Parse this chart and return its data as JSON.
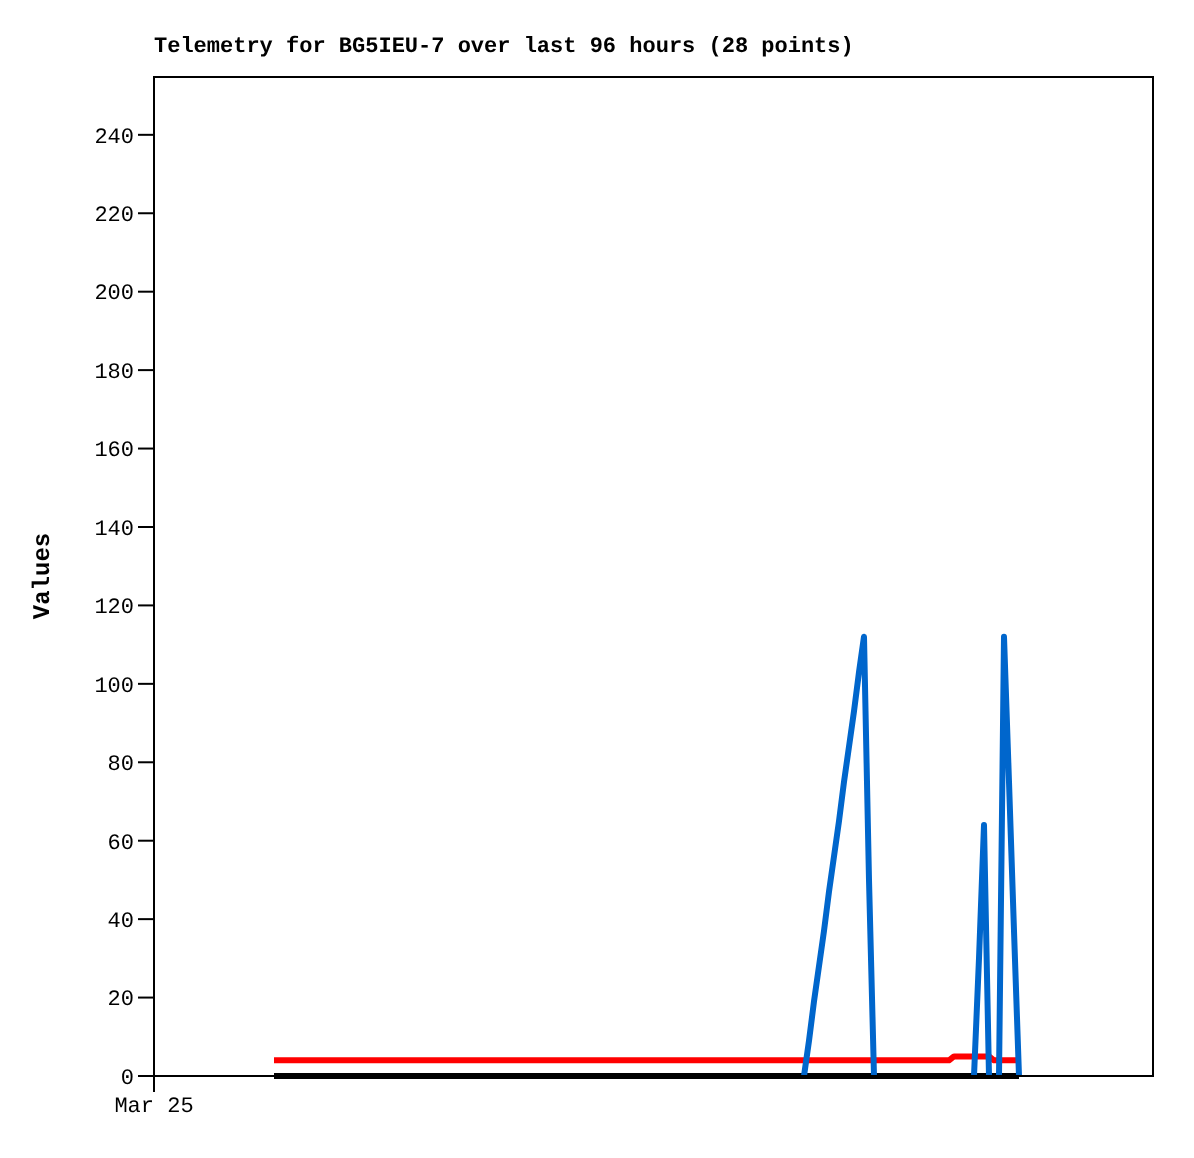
{
  "chart_data": {
    "type": "line",
    "title": "Telemetry for BG5IEU-7 over last 96 hours (28 points)",
    "ylabel": "Values",
    "ylim": [
      0,
      255
    ],
    "yticks": [
      0,
      20,
      40,
      60,
      80,
      100,
      120,
      140,
      160,
      180,
      200,
      220,
      240
    ],
    "marker": "none",
    "line_style": "solid",
    "categories": [
      "Mar 25",
      null,
      null,
      null,
      null,
      null,
      null,
      null,
      null,
      null,
      null,
      null,
      null,
      null,
      null,
      null,
      null,
      null,
      null,
      null,
      null,
      null,
      null,
      null,
      null,
      null,
      null,
      null,
      null,
      null,
      null,
      null,
      null,
      null,
      null,
      null,
      null,
      null,
      null,
      null,
      null,
      null,
      null,
      null,
      null,
      null,
      null,
      null,
      null,
      null,
      null,
      null,
      null,
      null,
      null,
      null,
      null,
      null,
      null,
      null,
      null,
      null,
      null,
      null,
      null,
      null,
      null,
      null,
      null,
      null,
      null,
      null,
      null,
      null,
      null,
      null,
      null,
      null,
      null,
      null,
      null,
      null,
      null,
      null,
      null,
      null,
      null,
      null,
      null,
      null,
      null,
      null,
      null,
      null,
      null,
      null,
      null,
      null,
      null,
      null,
      null,
      null,
      null,
      null,
      null,
      null,
      null,
      null,
      null,
      null,
      null,
      null,
      null,
      null,
      null,
      null,
      null,
      null,
      null,
      null,
      null,
      null,
      null,
      null,
      null,
      null,
      null,
      null,
      null,
      null,
      null,
      null,
      null,
      null,
      null,
      null,
      null,
      null,
      null,
      null,
      null,
      null,
      null,
      null,
      null,
      null,
      null,
      null,
      null,
      null,
      null,
      null,
      null,
      null,
      null,
      null,
      null,
      null,
      null,
      null,
      null,
      null,
      null,
      null,
      null,
      null,
      null,
      null,
      null,
      null,
      null,
      null,
      null,
      null,
      null,
      null,
      null,
      null,
      null,
      null,
      null,
      null,
      null,
      null,
      null,
      null,
      null,
      null,
      null,
      null,
      null,
      null,
      null,
      null,
      null,
      null,
      null,
      null,
      null,
      null,
      null
    ],
    "series": [
      {
        "color": "#000000",
        "values": [
          null,
          null,
          null,
          null,
          null,
          null,
          null,
          null,
          null,
          null,
          null,
          null,
          null,
          null,
          null,
          null,
          null,
          null,
          null,
          null,
          null,
          null,
          null,
          null,
          0,
          0,
          0,
          0,
          0,
          0,
          0,
          0,
          0,
          0,
          0,
          0,
          0,
          0,
          0,
          0,
          0,
          0,
          0,
          0,
          0,
          0,
          0,
          0,
          0,
          0,
          0,
          0,
          0,
          0,
          0,
          0,
          0,
          0,
          0,
          0,
          0,
          0,
          0,
          0,
          0,
          0,
          0,
          0,
          0,
          0,
          0,
          0,
          0,
          0,
          0,
          0,
          0,
          0,
          0,
          0,
          0,
          0,
          0,
          0,
          0,
          0,
          0,
          0,
          0,
          0,
          0,
          0,
          0,
          0,
          0,
          0,
          0,
          0,
          0,
          0,
          0,
          0,
          0,
          0,
          0,
          0,
          0,
          0,
          0,
          0,
          0,
          0,
          0,
          0,
          0,
          0,
          0,
          0,
          0,
          0,
          0,
          0,
          0,
          0,
          0,
          0,
          0,
          0,
          0,
          0,
          0,
          0,
          0,
          0,
          0,
          0,
          0,
          0,
          0,
          0,
          0,
          0,
          0,
          0,
          0,
          0,
          0,
          0,
          0,
          0,
          0,
          0,
          0,
          0,
          0,
          0,
          0,
          0,
          0,
          0,
          0,
          0,
          0,
          0,
          0,
          0,
          0,
          0,
          0,
          0,
          0,
          0,
          0,
          0,
          null,
          null,
          null,
          null,
          null,
          null,
          null,
          null,
          null,
          null,
          null,
          null,
          null,
          null,
          null,
          null,
          null,
          null,
          null,
          null,
          null,
          null,
          null,
          null,
          null,
          null,
          null
        ]
      },
      {
        "color": "#ff0000",
        "values": [
          null,
          null,
          null,
          null,
          null,
          null,
          null,
          null,
          null,
          null,
          null,
          null,
          null,
          null,
          null,
          null,
          null,
          null,
          null,
          null,
          null,
          null,
          null,
          null,
          4,
          4,
          4,
          4,
          4,
          4,
          4,
          4,
          4,
          4,
          4,
          4,
          4,
          4,
          4,
          4,
          4,
          4,
          4,
          4,
          4,
          4,
          4,
          4,
          4,
          4,
          4,
          4,
          4,
          4,
          4,
          4,
          4,
          4,
          4,
          4,
          4,
          4,
          4,
          4,
          4,
          4,
          4,
          4,
          4,
          4,
          4,
          4,
          4,
          4,
          4,
          4,
          4,
          4,
          4,
          4,
          4,
          4,
          4,
          4,
          4,
          4,
          4,
          4,
          4,
          4,
          4,
          4,
          4,
          4,
          4,
          4,
          4,
          4,
          4,
          4,
          4,
          4,
          4,
          4,
          4,
          4,
          4,
          4,
          4,
          4,
          4,
          4,
          4,
          4,
          4,
          4,
          4,
          4,
          4,
          4,
          4,
          4,
          4,
          4,
          4,
          4,
          4,
          4,
          4,
          4,
          4,
          4,
          4,
          4,
          4,
          4,
          4,
          4,
          4,
          4,
          4,
          4,
          4,
          4,
          4,
          4,
          4,
          4,
          4,
          4,
          4,
          4,
          4,
          4,
          4,
          4,
          4,
          4,
          4,
          4,
          5,
          5,
          5,
          5,
          5,
          5,
          5,
          5,
          4,
          4,
          4,
          4,
          4,
          4,
          null,
          null,
          null,
          null,
          null,
          null,
          null,
          null,
          null,
          null,
          null,
          null,
          null,
          null,
          null,
          null,
          null,
          null,
          null,
          null,
          null,
          null,
          null,
          null,
          null,
          null,
          null
        ]
      },
      {
        "color": "#0066cc",
        "values": [
          null,
          null,
          null,
          null,
          null,
          null,
          null,
          null,
          null,
          null,
          null,
          null,
          null,
          null,
          null,
          null,
          null,
          null,
          null,
          null,
          null,
          null,
          null,
          null,
          null,
          null,
          null,
          null,
          null,
          null,
          null,
          null,
          null,
          null,
          null,
          null,
          null,
          null,
          null,
          null,
          null,
          null,
          null,
          null,
          null,
          null,
          null,
          null,
          null,
          null,
          null,
          null,
          null,
          null,
          null,
          null,
          null,
          null,
          null,
          null,
          null,
          null,
          null,
          null,
          null,
          null,
          null,
          null,
          null,
          null,
          null,
          null,
          null,
          null,
          null,
          null,
          null,
          null,
          null,
          null,
          null,
          null,
          null,
          null,
          null,
          null,
          null,
          null,
          null,
          null,
          null,
          null,
          null,
          null,
          null,
          null,
          null,
          null,
          null,
          null,
          null,
          null,
          null,
          null,
          null,
          null,
          null,
          null,
          null,
          null,
          null,
          null,
          null,
          null,
          null,
          null,
          null,
          null,
          null,
          null,
          null,
          null,
          null,
          null,
          null,
          null,
          null,
          null,
          null,
          null,
          0,
          9,
          19,
          28,
          37,
          47,
          56,
          65,
          75,
          84,
          93,
          103,
          112,
          50,
          0,
          null,
          null,
          null,
          null,
          null,
          null,
          null,
          null,
          null,
          null,
          null,
          null,
          null,
          null,
          null,
          null,
          null,
          null,
          null,
          0,
          30,
          64,
          0,
          null,
          0,
          112,
          75,
          37,
          0,
          null,
          null,
          null,
          null,
          null,
          null,
          null,
          null,
          null,
          null,
          null,
          null,
          null,
          null,
          null,
          null,
          null,
          null,
          null,
          null,
          null,
          null,
          null,
          null,
          null,
          null,
          null
        ]
      }
    ]
  }
}
